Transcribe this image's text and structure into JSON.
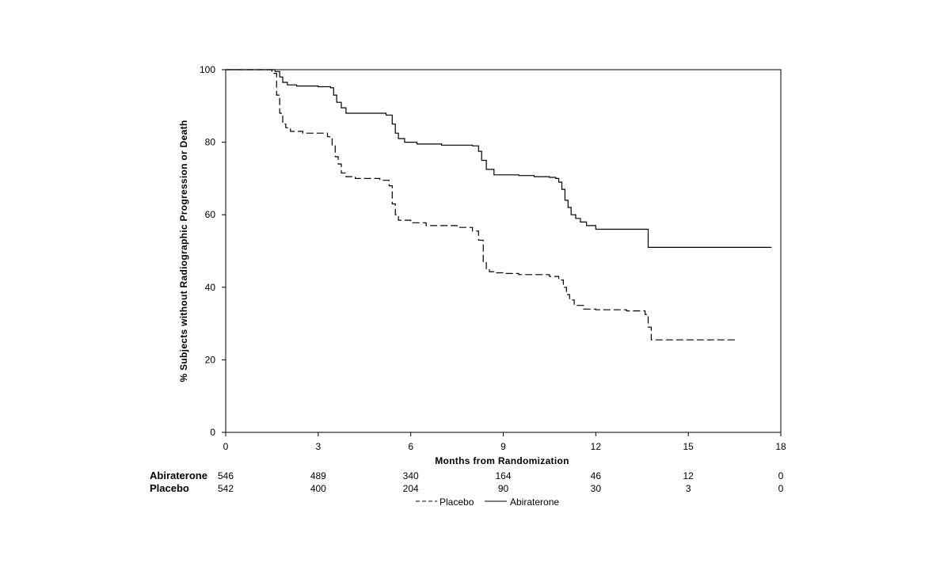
{
  "chart_data": {
    "type": "line",
    "title": "",
    "xlabel": "Months from Randomization",
    "ylabel": "% Subjects without Radiographic Progression or Death",
    "xlim": [
      0,
      18
    ],
    "ylim": [
      0,
      100
    ],
    "xticks": [
      "0",
      "3",
      "6",
      "9",
      "12",
      "15",
      "18"
    ],
    "yticks": [
      "0",
      "20",
      "40",
      "60",
      "80",
      "100"
    ],
    "grid": false,
    "legend_position": "bottom-center",
    "series": [
      {
        "name": "Placebo",
        "style": "dashed",
        "color": "#000000",
        "x": [
          0,
          1.5,
          1.65,
          1.75,
          1.85,
          1.95,
          2.1,
          2.5,
          3.0,
          3.3,
          3.45,
          3.55,
          3.65,
          3.75,
          3.9,
          4.2,
          5.0,
          5.3,
          5.4,
          5.5,
          5.6,
          6.0,
          6.5,
          7.5,
          8.0,
          8.2,
          8.35,
          8.45,
          8.55,
          8.7,
          9.0,
          9.5,
          10.5,
          10.8,
          10.95,
          11.05,
          11.15,
          11.3,
          11.6,
          12.0,
          13.0,
          13.6,
          13.7,
          13.8,
          16.6
        ],
        "y": [
          100,
          99,
          93,
          88,
          85,
          84,
          83,
          82.5,
          82.5,
          81.5,
          79,
          76,
          74,
          71.5,
          70.5,
          70,
          69.5,
          68,
          63,
          60,
          58.5,
          57.8,
          57,
          56.5,
          55.5,
          53,
          47,
          45,
          44.3,
          44,
          43.8,
          43.5,
          43,
          42,
          40,
          38,
          36.5,
          35,
          34,
          33.8,
          33.5,
          32.5,
          29,
          25.5,
          25.5
        ]
      },
      {
        "name": "Abiraterone",
        "style": "solid",
        "color": "#000000",
        "x": [
          0,
          1.6,
          1.75,
          1.85,
          2.0,
          2.3,
          3.0,
          3.4,
          3.5,
          3.6,
          3.75,
          3.9,
          4.2,
          5.2,
          5.4,
          5.5,
          5.6,
          5.8,
          6.2,
          7.0,
          8.0,
          8.2,
          8.3,
          8.45,
          8.7,
          9.5,
          10.0,
          10.5,
          10.7,
          10.8,
          10.9,
          11.0,
          11.1,
          11.2,
          11.35,
          11.5,
          11.7,
          12.0,
          13.0,
          13.6,
          13.7,
          17.7
        ],
        "y": [
          100,
          99.5,
          98,
          96.5,
          95.8,
          95.5,
          95.3,
          95,
          93,
          91,
          89.5,
          88,
          88,
          87.5,
          85,
          82.5,
          81,
          80,
          79.5,
          79.2,
          79,
          77.5,
          75,
          72.5,
          71,
          70.8,
          70.5,
          70.3,
          70,
          69,
          67,
          64,
          62,
          60,
          59,
          58,
          57,
          56,
          56,
          56,
          51,
          51
        ]
      }
    ]
  },
  "risk_table": {
    "times": [
      "0",
      "3",
      "6",
      "9",
      "12",
      "15",
      "18"
    ],
    "rows": [
      {
        "label": "Abiraterone",
        "values": [
          "546",
          "489",
          "340",
          "164",
          "46",
          "12",
          "0"
        ]
      },
      {
        "label": "Placebo",
        "values": [
          "542",
          "400",
          "204",
          "90",
          "30",
          "3",
          "0"
        ]
      }
    ]
  },
  "legend": {
    "items": [
      {
        "name": "Placebo",
        "style": "dashed"
      },
      {
        "name": "Abiraterone",
        "style": "solid"
      }
    ]
  }
}
